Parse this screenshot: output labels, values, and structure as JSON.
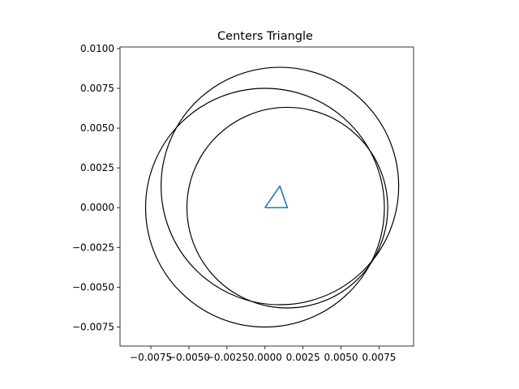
{
  "chart_data": {
    "type": "line",
    "title": "Centers Triangle",
    "xlabel": "",
    "ylabel": "",
    "xlim": [
      -0.00953,
      0.00977
    ],
    "ylim": [
      -0.0087,
      0.0101
    ],
    "aspect": "equal",
    "grid": false,
    "legend": "none",
    "x_ticks": [
      -0.0075,
      -0.005,
      -0.0025,
      0.0,
      0.0025,
      0.005,
      0.0075
    ],
    "x_tick_labels": [
      "−0.0075",
      "−0.0050",
      "−0.0025",
      "0.0000",
      "0.0025",
      "0.0050",
      "0.0075"
    ],
    "y_ticks": [
      -0.0075,
      -0.005,
      -0.0025,
      0.0,
      0.0025,
      0.005,
      0.0075,
      0.01
    ],
    "y_tick_labels": [
      "−0.0075",
      "−0.0050",
      "−0.0025",
      "0.0000",
      "0.0025",
      "0.0050",
      "0.0075",
      "0.0100"
    ],
    "series": [
      {
        "kind": "polyline",
        "color": "#1f77b4",
        "x": [
          0.0,
          0.00147,
          0.00098,
          0.0
        ],
        "y": [
          0.0,
          0.0,
          0.00136,
          0.0
        ]
      }
    ],
    "circles": [
      {
        "cx": 0.0,
        "cy": 0.0,
        "r": 0.00785,
        "color": "#000000"
      },
      {
        "cx": 0.00098,
        "cy": 0.00136,
        "r": 0.00781,
        "color": "#000000"
      },
      {
        "cx": 0.00147,
        "cy": 0.0,
        "r": 0.0066,
        "color": "#000000"
      }
    ]
  }
}
